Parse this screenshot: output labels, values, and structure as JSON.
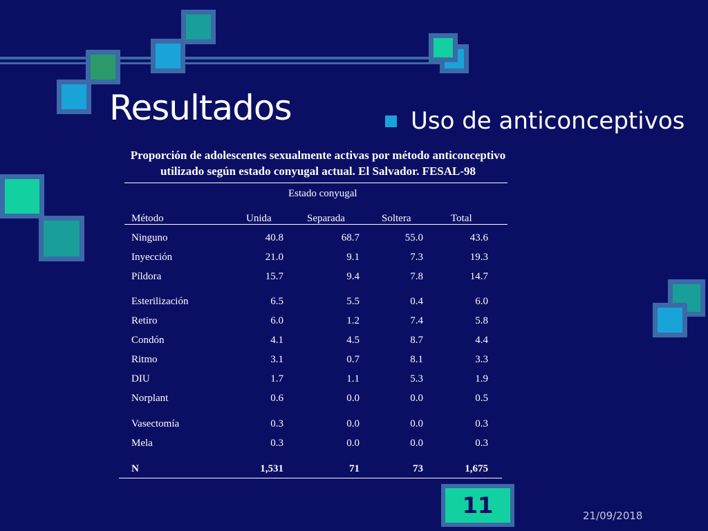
{
  "slide": {
    "title": "Resultados",
    "bullet": "Uso de anticonceptivos",
    "page_number": "11",
    "date": "21/09/2018"
  },
  "table": {
    "caption_line1": "Proporción de adolescentes sexualmente activas por método anticonceptivo",
    "caption_line2": "utilizado según estado conyugal actual. El Salvador. FESAL-98",
    "group_header": "Estado conyugal",
    "columns": [
      "Método",
      "Unida",
      "Separada",
      "Soltera",
      "Total"
    ],
    "rows": [
      {
        "metodo": "Ninguno",
        "unida": "40.8",
        "separada": "68.7",
        "soltera": "55.0",
        "total": "43.6"
      },
      {
        "metodo": "Inyección",
        "unida": "21.0",
        "separada": "9.1",
        "soltera": "7.3",
        "total": "19.3"
      },
      {
        "metodo": "Píldora",
        "unida": "15.7",
        "separada": "9.4",
        "soltera": "7.8",
        "total": "14.7"
      },
      {
        "metodo": "Esterilización",
        "unida": "6.5",
        "separada": "5.5",
        "soltera": "0.4",
        "total": "6.0"
      },
      {
        "metodo": "Retiro",
        "unida": "6.0",
        "separada": "1.2",
        "soltera": "7.4",
        "total": "5.8"
      },
      {
        "metodo": "Condón",
        "unida": "4.1",
        "separada": "4.5",
        "soltera": "8.7",
        "total": "4.4"
      },
      {
        "metodo": "Ritmo",
        "unida": "3.1",
        "separada": "0.7",
        "soltera": "8.1",
        "total": "3.3"
      },
      {
        "metodo": "DIU",
        "unida": "1.7",
        "separada": "1.1",
        "soltera": "5.3",
        "total": "1.9"
      },
      {
        "metodo": "Norplant",
        "unida": "0.6",
        "separada": "0.0",
        "soltera": "0.0",
        "total": "0.5"
      },
      {
        "metodo": "Vasectomía",
        "unida": "0.3",
        "separada": "0.0",
        "soltera": "0.0",
        "total": "0.3"
      },
      {
        "metodo": "Mela",
        "unida": "0.3",
        "separada": "0.0",
        "soltera": "0.0",
        "total": "0.3"
      }
    ],
    "n_row": {
      "metodo": "N",
      "unida": "1,531",
      "separada": "71",
      "soltera": "73",
      "total": "1,675"
    }
  },
  "colors": {
    "background": "#0b0f64",
    "square_border": "#3b6aa8",
    "teal": "#1a9e9a",
    "green": "#2a9a6a",
    "blue": "#1aa3d9",
    "mint": "#13d0a0"
  }
}
